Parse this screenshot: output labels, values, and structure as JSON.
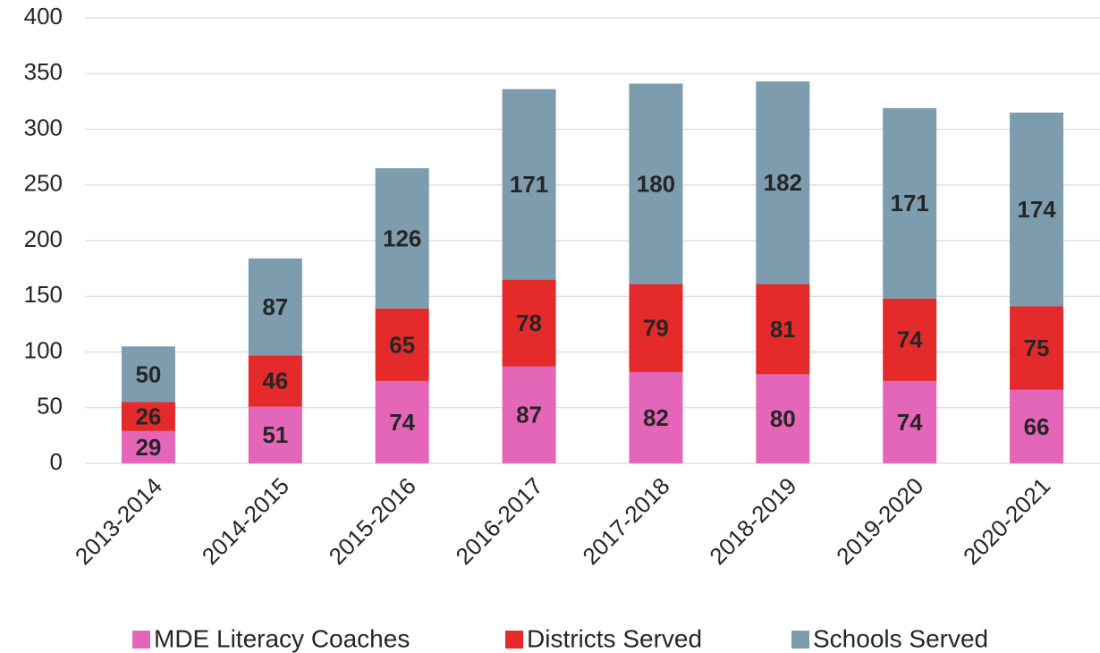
{
  "chart_data": {
    "type": "stacked_bar",
    "categories": [
      "2013-2014",
      "2014-2015",
      "2015-2016",
      "2016-2017",
      "2017-2018",
      "2018-2019",
      "2019-2020",
      "2020-2021"
    ],
    "series": [
      {
        "name": "MDE Literacy Coaches",
        "color": "#e466b8",
        "values": [
          29,
          51,
          74,
          87,
          82,
          80,
          74,
          66
        ]
      },
      {
        "name": "Districts Served",
        "color": "#e42a2a",
        "values": [
          26,
          46,
          65,
          78,
          79,
          81,
          74,
          75
        ]
      },
      {
        "name": "Schools Served",
        "color": "#7d9cae",
        "values": [
          50,
          87,
          126,
          171,
          180,
          182,
          171,
          174
        ]
      }
    ],
    "ylim": [
      0,
      400
    ],
    "yticks": [
      0,
      50,
      100,
      150,
      200,
      250,
      300,
      350,
      400
    ],
    "grid": true,
    "legend": "bottom",
    "data_labels": true
  }
}
